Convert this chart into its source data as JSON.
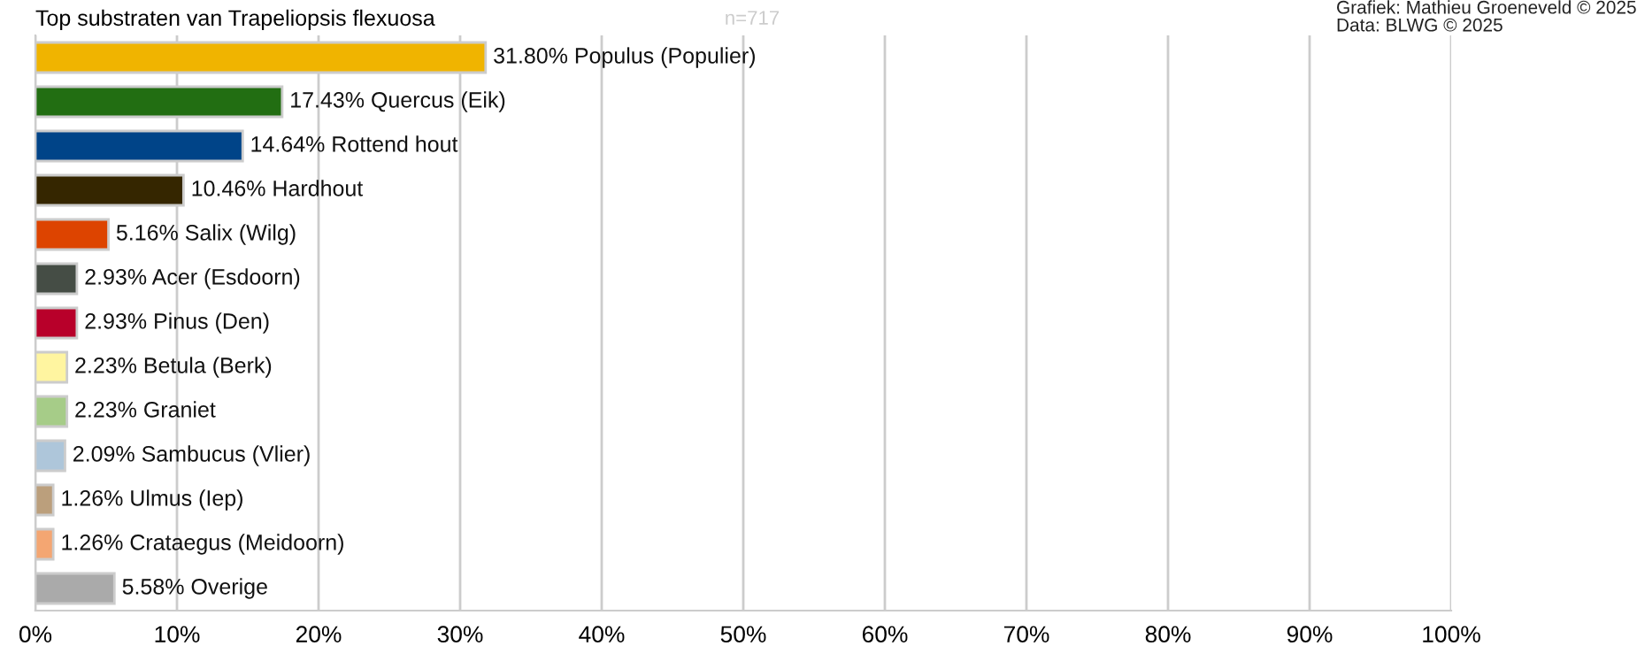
{
  "chart_data": {
    "type": "bar",
    "orientation": "horizontal",
    "title": "Top substraten van Trapeliopsis flexuosa",
    "annotations": [
      "n=717",
      "Grafiek: Mathieu Groeneveld © 2025",
      "Data: BLWG © 2025"
    ],
    "categories": [
      null,
      null,
      null,
      null,
      null,
      null,
      null,
      null,
      null,
      null,
      null,
      null,
      null
    ],
    "values": [
      31.8,
      17.43,
      14.64,
      10.46,
      5.16,
      2.93,
      2.93,
      2.23,
      2.23,
      2.09,
      1.26,
      1.26,
      5.58
    ],
    "colors": [
      "#f0b400",
      "#226e12",
      "#004488",
      "#352600",
      "#dd4400",
      "#454d45",
      "#b8002a",
      "#fff5a0",
      "#a6cc88",
      "#aec6da",
      "#bb9f7c",
      "#f4a672",
      "#aaaaaa"
    ],
    "value_labels": [
      "31.80% Populus (Populier)",
      "17.43% Quercus (Eik)",
      "14.64% Rottend hout",
      "10.46% Hardhout",
      "5.16% Salix (Wilg)",
      "2.93% Acer (Esdoorn)",
      "2.93% Pinus (Den)",
      "2.23% Betula (Berk)",
      "2.23% Graniet",
      "2.09% Sambucus (Vlier)",
      "1.26% Ulmus (Iep)",
      "1.26% Crataegus (Meidoorn)",
      "5.58% Overige"
    ],
    "xlim": [
      0,
      100
    ],
    "xticks": [
      {
        "value": 0,
        "label": "0%"
      },
      {
        "value": 10,
        "label": "10%"
      },
      {
        "value": 20,
        "label": "20%"
      },
      {
        "value": 30,
        "label": "30%"
      },
      {
        "value": 40,
        "label": "40%"
      },
      {
        "value": 50,
        "label": "50%"
      },
      {
        "value": 60,
        "label": "60%"
      },
      {
        "value": 70,
        "label": "70%"
      },
      {
        "value": 80,
        "label": "80%"
      },
      {
        "value": 90,
        "label": "90%"
      },
      {
        "value": 100,
        "label": "100%"
      }
    ],
    "grid": "x"
  }
}
